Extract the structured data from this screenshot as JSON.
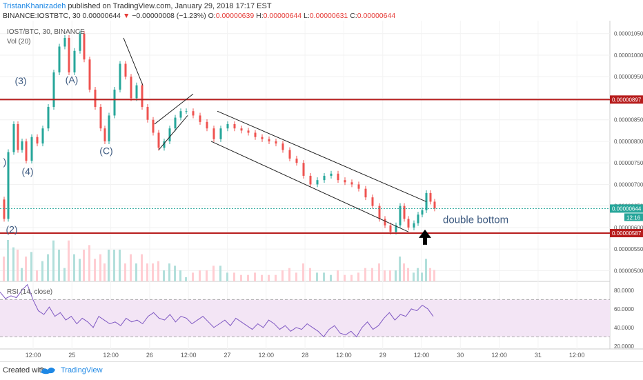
{
  "header": {
    "author": "TristanKhanizadeh",
    "published": "published on TradingView.com, January 29, 2018 17:17 EST",
    "symbol": "BINANCE:IOSTBTC, 30",
    "last": "0.00000644",
    "change": "−0.00000008 (−1.23%)",
    "o_label": "O:",
    "o_val": "0.00000639",
    "h_label": "H:",
    "h_val": "0.00000644",
    "l_label": "L:",
    "l_val": "0.00000631",
    "c_label": "C:",
    "c_val": "0.00000644"
  },
  "legend": {
    "main": "IOST/BTC, 30, BINANCE",
    "vol": "Vol (20)",
    "rsi": "RSI (14, close)"
  },
  "footer": {
    "created_with": "Created with",
    "brand": "TradingView"
  },
  "chart_data": {
    "type": "candlestick",
    "x_ticks": [
      "12:00",
      "25",
      "12:00",
      "26",
      "12:00",
      "27",
      "12:00",
      "28",
      "12:00",
      "29",
      "12:00",
      "30",
      "12:00",
      "31",
      "12:00"
    ],
    "price_axis_ticks": [
      "0.00001050",
      "0.00001000",
      "0.00000950",
      "0.00000900",
      "0.00000850",
      "0.00000800",
      "0.00000750",
      "0.00000700",
      "0.00000650",
      "0.00000600",
      "0.00000550",
      "0.00000500"
    ],
    "price_range": [
      4.75e-06,
      1.08e-05
    ],
    "horizontal_levels": [
      {
        "value": 8.97e-06,
        "label": "0.00000897",
        "color": "#b71c1c"
      },
      {
        "value": 5.87e-06,
        "label": "0.00000587",
        "color": "#b71c1c"
      }
    ],
    "last_price": {
      "value": 6.44e-06,
      "label": "0.00000644",
      "color": "#26a69a",
      "countdown": "12:16"
    },
    "price_path": [
      {
        "x": 0,
        "y": 6.65e-06
      },
      {
        "x": 6,
        "y": 6.2e-06
      },
      {
        "x": 12,
        "y": 7.75e-06
      },
      {
        "x": 20,
        "y": 8.4e-06
      },
      {
        "x": 26,
        "y": 7.8e-06
      },
      {
        "x": 32,
        "y": 8e-06
      },
      {
        "x": 38,
        "y": 7.55e-06
      },
      {
        "x": 46,
        "y": 8.1e-06
      },
      {
        "x": 54,
        "y": 7.95e-06
      },
      {
        "x": 62,
        "y": 8.3e-06
      },
      {
        "x": 70,
        "y": 8.8e-06
      },
      {
        "x": 78,
        "y": 9.6e-06
      },
      {
        "x": 86,
        "y": 1.02e-05
      },
      {
        "x": 94,
        "y": 1.04e-05
      },
      {
        "x": 100,
        "y": 9.6e-06
      },
      {
        "x": 108,
        "y": 1.01e-05
      },
      {
        "x": 116,
        "y": 1.05e-05
      },
      {
        "x": 122,
        "y": 9.9e-06
      },
      {
        "x": 130,
        "y": 9.2e-06
      },
      {
        "x": 138,
        "y": 8.8e-06
      },
      {
        "x": 146,
        "y": 8.3e-06
      },
      {
        "x": 152,
        "y": 8e-06
      },
      {
        "x": 158,
        "y": 8.6e-06
      },
      {
        "x": 166,
        "y": 9.2e-06
      },
      {
        "x": 174,
        "y": 9.8e-06
      },
      {
        "x": 182,
        "y": 9.5e-06
      },
      {
        "x": 190,
        "y": 9e-06
      },
      {
        "x": 198,
        "y": 9.3e-06
      },
      {
        "x": 206,
        "y": 8.8e-06
      },
      {
        "x": 214,
        "y": 8.5e-06
      },
      {
        "x": 222,
        "y": 8.2e-06
      },
      {
        "x": 230,
        "y": 7.85e-06
      },
      {
        "x": 238,
        "y": 8e-06
      },
      {
        "x": 246,
        "y": 8.3e-06
      },
      {
        "x": 254,
        "y": 8.55e-06
      },
      {
        "x": 262,
        "y": 8.7e-06
      },
      {
        "x": 270,
        "y": 8.7e-06
      },
      {
        "x": 280,
        "y": 8.6e-06
      },
      {
        "x": 290,
        "y": 8.45e-06
      },
      {
        "x": 300,
        "y": 8.3e-06
      },
      {
        "x": 310,
        "y": 8.05e-06
      },
      {
        "x": 320,
        "y": 8.3e-06
      },
      {
        "x": 330,
        "y": 8.4e-06
      },
      {
        "x": 340,
        "y": 8.3e-06
      },
      {
        "x": 350,
        "y": 8.25e-06
      },
      {
        "x": 360,
        "y": 8.2e-06
      },
      {
        "x": 370,
        "y": 8.1e-06
      },
      {
        "x": 380,
        "y": 8.05e-06
      },
      {
        "x": 390,
        "y": 8e-06
      },
      {
        "x": 400,
        "y": 7.95e-06
      },
      {
        "x": 410,
        "y": 7.8e-06
      },
      {
        "x": 420,
        "y": 7.6e-06
      },
      {
        "x": 430,
        "y": 7.5e-06
      },
      {
        "x": 440,
        "y": 7.2e-06
      },
      {
        "x": 450,
        "y": 7e-06
      },
      {
        "x": 460,
        "y": 7.1e-06
      },
      {
        "x": 470,
        "y": 7.2e-06
      },
      {
        "x": 480,
        "y": 7.25e-06
      },
      {
        "x": 490,
        "y": 7.1e-06
      },
      {
        "x": 500,
        "y": 7.05e-06
      },
      {
        "x": 510,
        "y": 7e-06
      },
      {
        "x": 520,
        "y": 6.9e-06
      },
      {
        "x": 530,
        "y": 6.7e-06
      },
      {
        "x": 540,
        "y": 6.5e-06
      },
      {
        "x": 550,
        "y": 6.2e-06
      },
      {
        "x": 558,
        "y": 6.05e-06
      },
      {
        "x": 566,
        "y": 5.9e-06
      },
      {
        "x": 574,
        "y": 6.05e-06
      },
      {
        "x": 580,
        "y": 6.5e-06
      },
      {
        "x": 586,
        "y": 6.2e-06
      },
      {
        "x": 592,
        "y": 6e-06
      },
      {
        "x": 600,
        "y": 6.1e-06
      },
      {
        "x": 606,
        "y": 6.3e-06
      },
      {
        "x": 612,
        "y": 6.4e-06
      },
      {
        "x": 618,
        "y": 6.8e-06
      },
      {
        "x": 624,
        "y": 6.6e-06
      },
      {
        "x": 630,
        "y": 6.44e-06
      }
    ],
    "wave_labels": [
      {
        "text": "(3)",
        "x": 30,
        "y": 9.33e-06
      },
      {
        "text": "(4)",
        "x": 40,
        "y": 7.22e-06
      },
      {
        "text": "(2)",
        "x": 17,
        "y": 5.88e-06
      },
      {
        "text": ")",
        "x": 7,
        "y": 7.45e-06
      },
      {
        "text": "(A)",
        "x": 104,
        "y": 9.35e-06
      },
      {
        "text": "(C)",
        "x": 154,
        "y": 7.7e-06
      }
    ],
    "trendlines": [
      {
        "from": {
          "x": 179,
          "y": 1.04e-05
        },
        "to": {
          "x": 207,
          "y": 9.3e-06
        }
      },
      {
        "from": {
          "x": 224,
          "y": 8.4e-06
        },
        "to": {
          "x": 280,
          "y": 9.1e-06
        }
      },
      {
        "from": {
          "x": 230,
          "y": 7.8e-06
        },
        "to": {
          "x": 272,
          "y": 8.6e-06
        }
      },
      {
        "from": {
          "x": 315,
          "y": 8.7e-06
        },
        "to": {
          "x": 618,
          "y": 6.6e-06
        }
      },
      {
        "from": {
          "x": 306,
          "y": 8e-06
        },
        "to": {
          "x": 592,
          "y": 5.9e-06
        }
      }
    ],
    "annotations": [
      {
        "text": "double bottom",
        "x": 642,
        "y": 6.1e-06
      },
      {
        "type": "arrow-up",
        "x": 616,
        "y": 5.6e-06
      }
    ],
    "volume_axis_ticks": [],
    "rsi": {
      "axis_ticks": [
        "80.0000",
        "60.0000",
        "40.0000",
        "20.0000"
      ],
      "range": [
        17,
        88
      ],
      "upper_band": 70,
      "lower_band": 30,
      "values": [
        78,
        71,
        74,
        72,
        80,
        86,
        70,
        58,
        54,
        62,
        52,
        56,
        48,
        52,
        44,
        50,
        46,
        40,
        52,
        48,
        44,
        46,
        42,
        50,
        46,
        48,
        44,
        52,
        56,
        50,
        48,
        54,
        46,
        52,
        50,
        44,
        48,
        52,
        46,
        40,
        44,
        48,
        42,
        50,
        46,
        42,
        38,
        44,
        40,
        48,
        44,
        38,
        42,
        36,
        40,
        38,
        44,
        40,
        36,
        30,
        38,
        42,
        34,
        32,
        36,
        30,
        40,
        46,
        38,
        42,
        50,
        56,
        48,
        54,
        52,
        60,
        58,
        64,
        60,
        52
      ]
    }
  },
  "colors": {
    "up": "#26a69a",
    "down": "#ef5350",
    "level": "#b71c1c",
    "rsi_line": "#7e57c2",
    "rsi_fill": "#f3e5f5",
    "vol_ma": "#ef6c00",
    "brand": "#1e88e5"
  }
}
